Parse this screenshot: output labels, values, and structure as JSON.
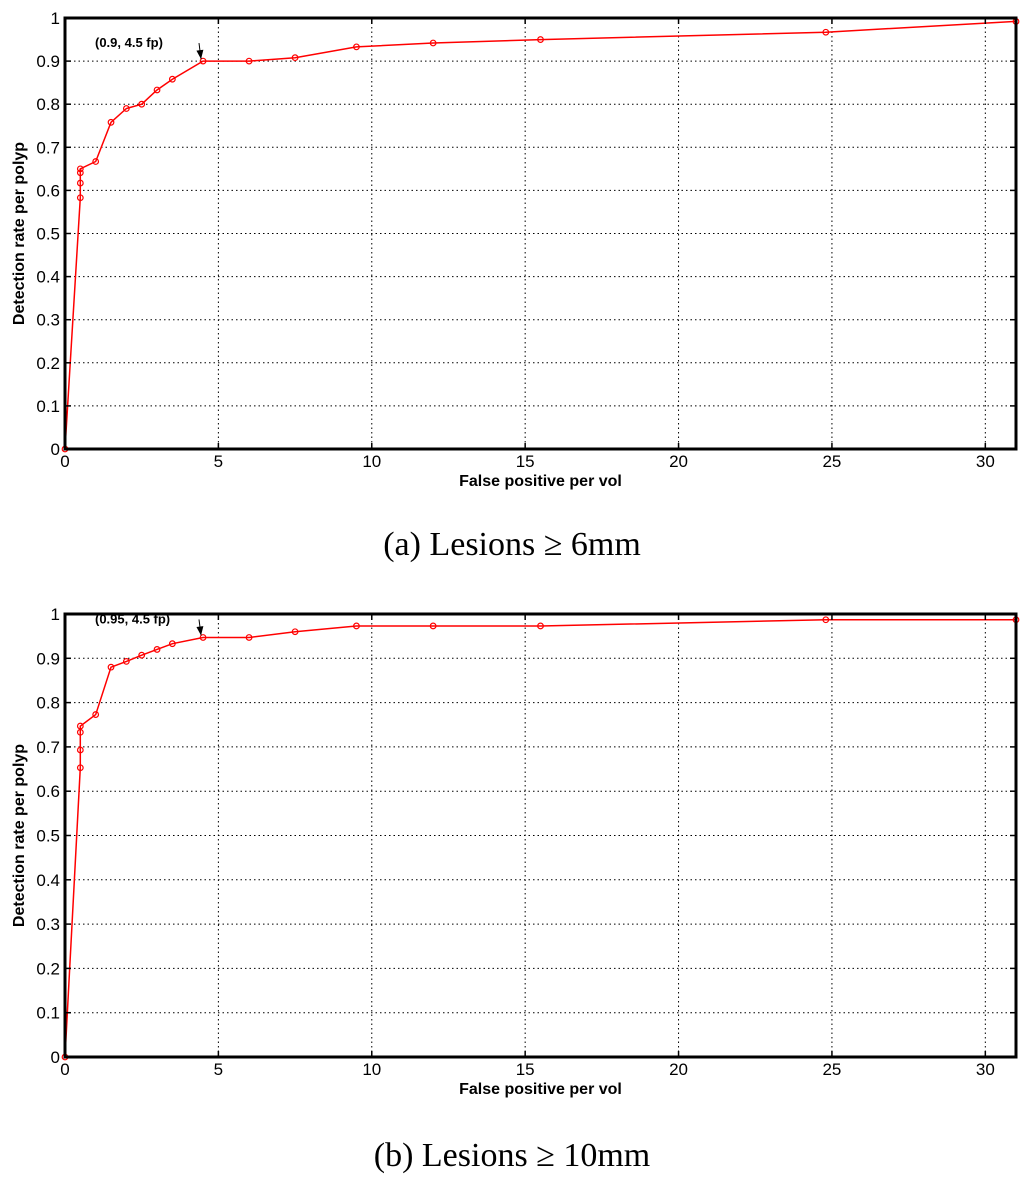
{
  "chart_data": [
    {
      "type": "line",
      "caption": "(a) Lesions ≥ 6mm",
      "xlabel": "False positive per vol",
      "ylabel": "Detection rate per polyp",
      "xlim": [
        0,
        31
      ],
      "ylim": [
        0,
        1
      ],
      "grid": true,
      "xticks": [
        0,
        5,
        10,
        15,
        20,
        25,
        30
      ],
      "yticks": [
        0,
        0.1,
        0.2,
        0.3,
        0.4,
        0.5,
        0.6,
        0.7,
        0.8,
        0.9,
        1
      ],
      "xtick_labels": [
        "0",
        "5",
        "10",
        "15",
        "20",
        "25",
        "30"
      ],
      "ytick_labels": [
        "0",
        "0.1",
        "0.2",
        "0.3",
        "0.4",
        "0.5",
        "0.6",
        "0.7",
        "0.8",
        "0.9",
        "1"
      ],
      "series": [
        {
          "color": "#ff0000",
          "x": [
            0,
            0.5,
            0.5,
            0.5,
            0.5,
            1.0,
            1.5,
            2.0,
            2.5,
            3.0,
            3.5,
            4.5,
            6.0,
            7.5,
            9.5,
            12.0,
            15.5,
            24.8,
            31.0
          ],
          "y": [
            0,
            0.583,
            0.617,
            0.641,
            0.65,
            0.667,
            0.758,
            0.79,
            0.8,
            0.833,
            0.858,
            0.9,
            0.9,
            0.908,
            0.933,
            0.942,
            0.95,
            0.967,
            0.992
          ]
        }
      ],
      "annotation": {
        "text": "(0.9, 4.5 fp)",
        "x": 4.5,
        "y": 0.9
      }
    },
    {
      "type": "line",
      "caption": "(b) Lesions ≥ 10mm",
      "xlabel": "False positive per vol",
      "ylabel": "Detection rate per polyp",
      "xlim": [
        0,
        31
      ],
      "ylim": [
        0,
        1
      ],
      "grid": true,
      "xticks": [
        0,
        5,
        10,
        15,
        20,
        25,
        30
      ],
      "yticks": [
        0,
        0.1,
        0.2,
        0.3,
        0.4,
        0.5,
        0.6,
        0.7,
        0.8,
        0.9,
        1
      ],
      "xtick_labels": [
        "0",
        "5",
        "10",
        "15",
        "20",
        "25",
        "30"
      ],
      "ytick_labels": [
        "0",
        "0.1",
        "0.2",
        "0.3",
        "0.4",
        "0.5",
        "0.6",
        "0.7",
        "0.8",
        "0.9",
        "1"
      ],
      "series": [
        {
          "color": "#ff0000",
          "x": [
            0,
            0.5,
            0.5,
            0.5,
            0.5,
            1.0,
            1.5,
            2.0,
            2.5,
            3.0,
            3.5,
            4.5,
            6.0,
            7.5,
            9.5,
            12.0,
            15.5,
            24.8,
            31.0
          ],
          "y": [
            0,
            0.653,
            0.693,
            0.733,
            0.747,
            0.773,
            0.88,
            0.893,
            0.907,
            0.92,
            0.933,
            0.947,
            0.947,
            0.96,
            0.973,
            0.973,
            0.973,
            0.987,
            0.987
          ]
        }
      ],
      "annotation": {
        "text": "(0.95, 4.5 fp)",
        "x": 4.5,
        "y": 0.947
      }
    }
  ]
}
